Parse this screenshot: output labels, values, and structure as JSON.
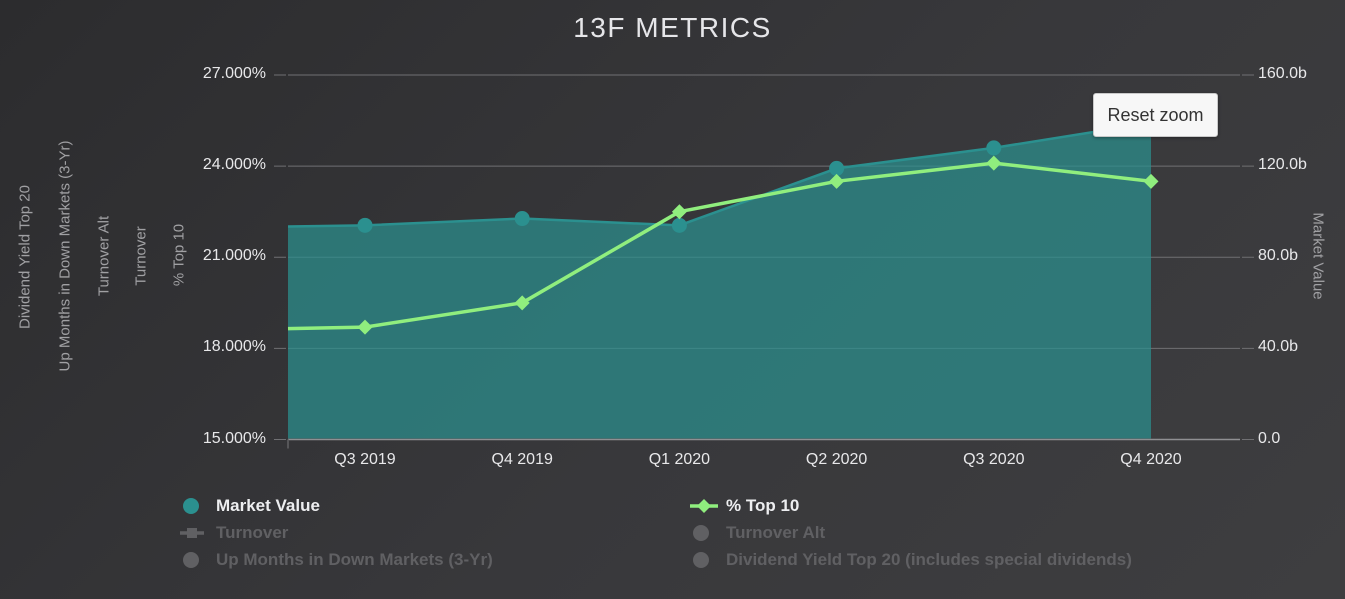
{
  "title": "13F METRICS",
  "reset_zoom_label": "Reset zoom",
  "axes": {
    "left": {
      "title": "% Top 10",
      "ticks": [
        "27.000%",
        "24.000%",
        "21.000%",
        "18.000%",
        "15.000%"
      ]
    },
    "right": {
      "title": "Market Value",
      "ticks": [
        "160.0b",
        "120.0b",
        "80.0b",
        "40.0b",
        "0.0"
      ]
    },
    "hidden_axis_titles": [
      "Turnover",
      "Turnover Alt",
      "Up Months in Down Markets (3-Yr)",
      "Dividend Yield Top 20"
    ]
  },
  "legend": {
    "items": [
      {
        "label": "Market Value",
        "marker": "circle",
        "color": "#2b908f",
        "enabled": true
      },
      {
        "label": "Turnover",
        "marker": "line-square",
        "color": "#606063",
        "enabled": false
      },
      {
        "label": "Up Months in Down Markets (3-Yr)",
        "marker": "circle",
        "color": "#606063",
        "enabled": false
      },
      {
        "label": "% Top 10",
        "marker": "line-diamond",
        "color": "#90ee7e",
        "enabled": true
      },
      {
        "label": "Turnover Alt",
        "marker": "circle",
        "color": "#606063",
        "enabled": false
      },
      {
        "label": "Dividend Yield Top 20 (includes special dividends)",
        "marker": "circle",
        "color": "#606063",
        "enabled": false
      }
    ]
  },
  "colors": {
    "market_value": "#2b908f",
    "pct_top10": "#90ee7e",
    "disabled": "#606063",
    "grid": "#707073",
    "axis_label": "#e8e8ea",
    "axis_title": "#a0a0a3"
  },
  "chart_data": {
    "type": "area",
    "title": "13F METRICS",
    "categories": [
      "Q3 2019",
      "Q4 2019",
      "Q1 2020",
      "Q2 2020",
      "Q3 2020",
      "Q4 2020"
    ],
    "series": [
      {
        "name": "Market Value",
        "type": "area",
        "axis": "right",
        "unit": "billions",
        "color": "#2b908f",
        "values": [
          94,
          97,
          94,
          119,
          128,
          139
        ],
        "left_edge_value": 93.5
      },
      {
        "name": "% Top 10",
        "type": "line",
        "axis": "left",
        "unit": "%",
        "color": "#90ee7e",
        "values": [
          18.7,
          19.5,
          22.5,
          23.5,
          24.1,
          23.5
        ],
        "left_edge_value": 18.65
      }
    ],
    "left_axis_range": [
      15,
      27
    ],
    "right_axis_range": [
      0,
      160
    ],
    "grid": true,
    "legend_position": "bottom",
    "zoomed": true
  }
}
